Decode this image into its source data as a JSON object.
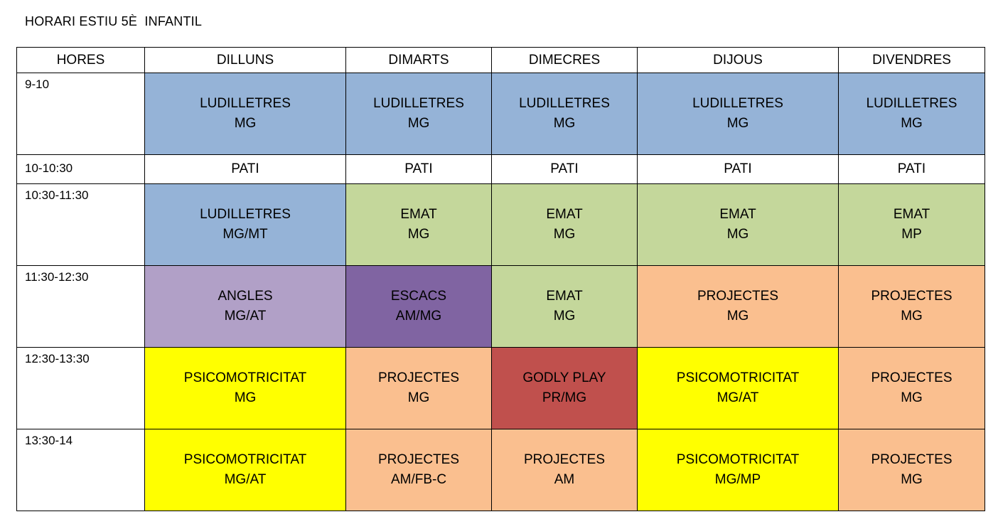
{
  "title": "HORARI ESTIU 5È  INFANTIL",
  "colors": {
    "LUDILLETRES": "#95b3d7",
    "EMAT": "#c4d79b",
    "ANGLES": "#b1a0c7",
    "ESCACS": "#8064a2",
    "PROJECTES": "#fabf8f",
    "PSICOMOTRICITAT": "#ffff00",
    "GODLY PLAY": "#c0504d",
    "PATI": "#ffffff"
  },
  "headers": [
    "HORES",
    "DILLUNS",
    "DIMARTS",
    "DIMECRES",
    "DIJOUS",
    "DIVENDRES"
  ],
  "rows": [
    {
      "time": "9-10",
      "cells": [
        {
          "subject": "LUDILLETRES",
          "teacher": "MG"
        },
        {
          "subject": "LUDILLETRES",
          "teacher": "MG"
        },
        {
          "subject": "LUDILLETRES",
          "teacher": "MG"
        },
        {
          "subject": "LUDILLETRES",
          "teacher": "MG"
        },
        {
          "subject": "LUDILLETRES",
          "teacher": "MG"
        }
      ]
    },
    {
      "time": "10-10:30",
      "cells": [
        {
          "subject": "PATI",
          "teacher": ""
        },
        {
          "subject": "PATI",
          "teacher": ""
        },
        {
          "subject": "PATI",
          "teacher": ""
        },
        {
          "subject": "PATI",
          "teacher": ""
        },
        {
          "subject": "PATI",
          "teacher": ""
        }
      ]
    },
    {
      "time": "10:30-11:30",
      "cells": [
        {
          "subject": "LUDILLETRES",
          "teacher": "MG/MT"
        },
        {
          "subject": "EMAT",
          "teacher": "MG"
        },
        {
          "subject": "EMAT",
          "teacher": "MG"
        },
        {
          "subject": "EMAT",
          "teacher": "MG"
        },
        {
          "subject": "EMAT",
          "teacher": "MP"
        }
      ]
    },
    {
      "time": "11:30-12:30",
      "cells": [
        {
          "subject": "ANGLES",
          "teacher": "MG/AT"
        },
        {
          "subject": "ESCACS",
          "teacher": "AM/MG"
        },
        {
          "subject": "EMAT",
          "teacher": "MG"
        },
        {
          "subject": "PROJECTES",
          "teacher": "MG"
        },
        {
          "subject": "PROJECTES",
          "teacher": "MG"
        }
      ]
    },
    {
      "time": "12:30-13:30",
      "cells": [
        {
          "subject": "PSICOMOTRICITAT",
          "teacher": "MG"
        },
        {
          "subject": "PROJECTES",
          "teacher": "MG"
        },
        {
          "subject": "GODLY PLAY",
          "teacher": "PR/MG"
        },
        {
          "subject": "PSICOMOTRICITAT",
          "teacher": "MG/AT"
        },
        {
          "subject": "PROJECTES",
          "teacher": "MG"
        }
      ]
    },
    {
      "time": "13:30-14",
      "cells": [
        {
          "subject": "PSICOMOTRICITAT",
          "teacher": "MG/AT"
        },
        {
          "subject": "PROJECTES",
          "teacher": "AM/FB-C"
        },
        {
          "subject": "PROJECTES",
          "teacher": "AM"
        },
        {
          "subject": "PSICOMOTRICITAT",
          "teacher": "MG/MP"
        },
        {
          "subject": "PROJECTES",
          "teacher": "MG"
        }
      ]
    }
  ]
}
